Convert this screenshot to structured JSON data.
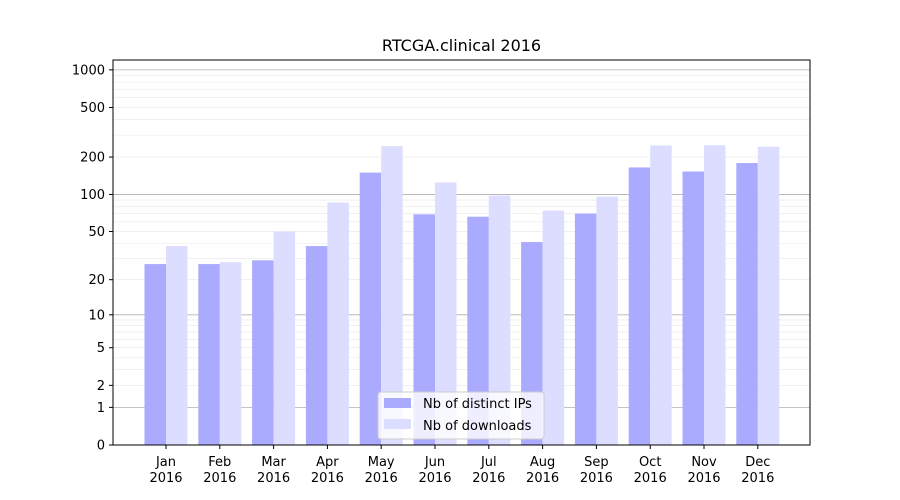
{
  "chart_data": {
    "type": "bar",
    "title": "RTCGA.clinical 2016",
    "xlabel": "",
    "ylabel": "",
    "yscale": "log1p",
    "ylim": [
      0,
      1200
    ],
    "yticks": [
      {
        "value": 0,
        "label": "0"
      },
      {
        "value": 1,
        "label": "1"
      },
      {
        "value": 2,
        "label": "2"
      },
      {
        "value": 5,
        "label": "5"
      },
      {
        "value": 10,
        "label": "10"
      },
      {
        "value": 20,
        "label": "20"
      },
      {
        "value": 50,
        "label": "50"
      },
      {
        "value": 100,
        "label": "100"
      },
      {
        "value": 200,
        "label": "200"
      },
      {
        "value": 500,
        "label": "500"
      },
      {
        "value": 1000,
        "label": "1000"
      }
    ],
    "grid": true,
    "legend_position": "bottom-center",
    "categories": [
      [
        "Jan",
        "2016"
      ],
      [
        "Feb",
        "2016"
      ],
      [
        "Mar",
        "2016"
      ],
      [
        "Apr",
        "2016"
      ],
      [
        "May",
        "2016"
      ],
      [
        "Jun",
        "2016"
      ],
      [
        "Jul",
        "2016"
      ],
      [
        "Aug",
        "2016"
      ],
      [
        "Sep",
        "2016"
      ],
      [
        "Oct",
        "2016"
      ],
      [
        "Nov",
        "2016"
      ],
      [
        "Dec",
        "2016"
      ]
    ],
    "series": [
      {
        "name": "Nb of distinct IPs",
        "color": "#aaaaff",
        "values": [
          27,
          27,
          29,
          38,
          150,
          69,
          66,
          41,
          70,
          165,
          153,
          179
        ]
      },
      {
        "name": "Nb of downloads",
        "color": "#ddddff",
        "values": [
          38,
          28,
          50,
          86,
          245,
          125,
          98,
          74,
          96,
          248,
          249,
          242
        ]
      }
    ]
  }
}
